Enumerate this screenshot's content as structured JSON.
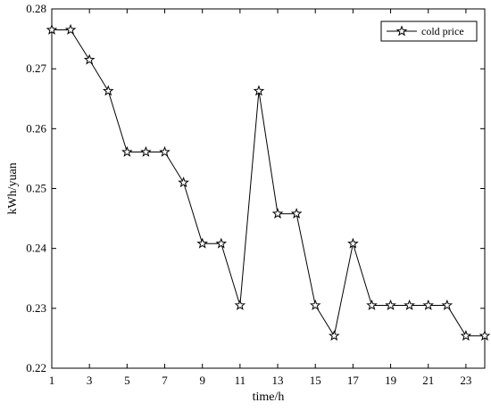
{
  "chart_data": {
    "type": "line",
    "title": "",
    "xlabel": "time/h",
    "ylabel": "kWh/yuan",
    "xlim": [
      1,
      24
    ],
    "ylim": [
      0.22,
      0.28
    ],
    "grid": false,
    "legend_position": "top-right",
    "xticks": [
      1,
      3,
      5,
      7,
      9,
      11,
      13,
      15,
      17,
      19,
      21,
      23
    ],
    "yticks": [
      0.22,
      0.23,
      0.24,
      0.25,
      0.26,
      0.27,
      0.28
    ],
    "x": [
      1,
      2,
      3,
      4,
      5,
      6,
      7,
      8,
      9,
      10,
      11,
      12,
      13,
      14,
      15,
      16,
      17,
      18,
      19,
      20,
      21,
      22,
      23,
      24
    ],
    "series": [
      {
        "name": "cold price",
        "color": "#000000",
        "marker": "star",
        "values": [
          0.2765,
          0.2765,
          0.2715,
          0.2663,
          0.2561,
          0.2561,
          0.2561,
          0.251,
          0.2408,
          0.2408,
          0.2305,
          0.2663,
          0.2458,
          0.2458,
          0.2305,
          0.2254,
          0.2408,
          0.2305,
          0.2305,
          0.2305,
          0.2305,
          0.2305,
          0.2254,
          0.2254
        ]
      }
    ]
  }
}
